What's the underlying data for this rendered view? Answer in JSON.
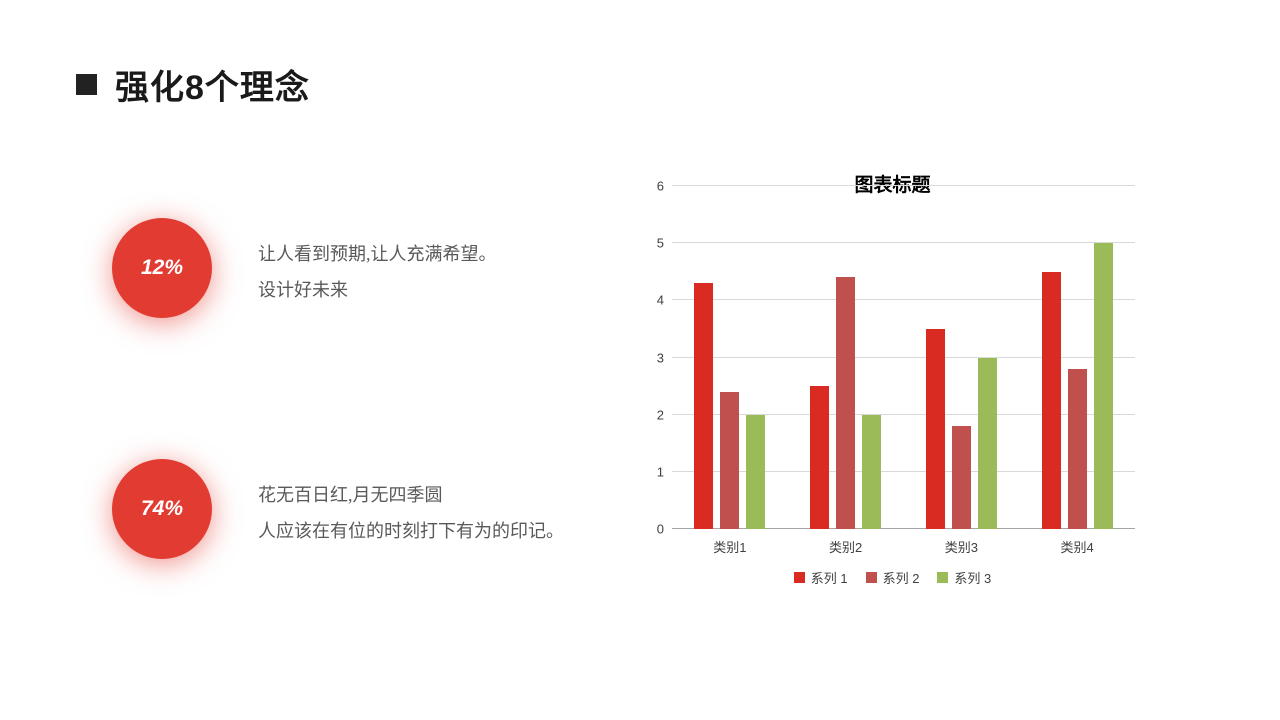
{
  "slide": {
    "title": "强化8个理念"
  },
  "points": [
    {
      "badge": "12%",
      "lines": [
        "让人看到预期,让人充满希望。",
        "设计好未来"
      ]
    },
    {
      "badge": "74%",
      "lines": [
        "花无百日红,月无四季圆",
        "人应该在有位的时刻打下有为的印记。"
      ]
    }
  ],
  "colors": {
    "accent_red": "#E23C32",
    "text_gray": "#595959",
    "series1": "#D92B21",
    "series2": "#C0504D",
    "series3": "#9BBB59"
  },
  "chart_data": {
    "type": "bar",
    "title": "图表标题",
    "categories": [
      "类别1",
      "类别2",
      "类别3",
      "类别4"
    ],
    "series": [
      {
        "name": "系列 1",
        "color": "#D92B21",
        "values": [
          4.3,
          2.5,
          3.5,
          4.5
        ]
      },
      {
        "name": "系列 2",
        "color": "#C0504D",
        "values": [
          2.4,
          4.4,
          1.8,
          2.8
        ]
      },
      {
        "name": "系列 3",
        "color": "#9BBB59",
        "values": [
          2.0,
          2.0,
          3.0,
          5.0
        ]
      }
    ],
    "ylim": [
      0,
      6
    ],
    "ytick_step": 1,
    "grid": true,
    "legend_position": "bottom"
  }
}
